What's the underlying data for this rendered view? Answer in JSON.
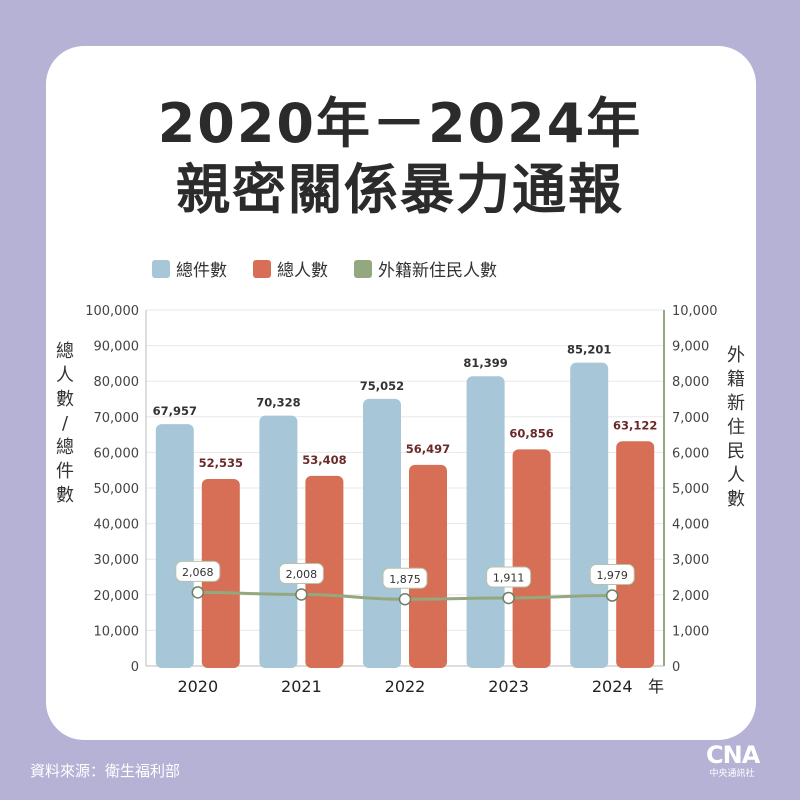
{
  "title": {
    "line1": "2020年－2024年",
    "line2": "親密關係暴力通報"
  },
  "legend": [
    {
      "label": "總件數",
      "color": "#a7c6d8"
    },
    {
      "label": "總人數",
      "color": "#d66f55"
    },
    {
      "label": "外籍新住民人數",
      "color": "#94a87f"
    }
  ],
  "left_axis_label": [
    "總",
    "人",
    "數",
    "/",
    "總",
    "件",
    "數"
  ],
  "right_axis_label": [
    "外",
    "籍",
    "新",
    "住",
    "民",
    "人",
    "數"
  ],
  "x_unit": "年",
  "source": "資料來源：衛生福利部",
  "logo": {
    "mark": "CNA",
    "sub": "中央通訊社"
  },
  "chart_data": {
    "type": "bar",
    "categories": [
      "2020",
      "2021",
      "2022",
      "2023",
      "2024"
    ],
    "series": [
      {
        "name": "總件數",
        "values": [
          67957,
          70328,
          75052,
          81399,
          85201
        ],
        "labels": [
          "67,957",
          "70,328",
          "75,052",
          "81,399",
          "85,201"
        ],
        "color": "#a7c6d8",
        "axis": "left"
      },
      {
        "name": "總人數",
        "values": [
          52535,
          53408,
          56497,
          60856,
          63122
        ],
        "labels": [
          "52,535",
          "53,408",
          "56,497",
          "60,856",
          "63,122"
        ],
        "color": "#d66f55",
        "axis": "left"
      },
      {
        "name": "外籍新住民人數",
        "values": [
          2068,
          2008,
          1875,
          1911,
          1979
        ],
        "labels": [
          "2,068",
          "2,008",
          "1,875",
          "1,911",
          "1,979"
        ],
        "color": "#94a87f",
        "axis": "right",
        "type": "line"
      }
    ],
    "left_ylim": [
      0,
      100000
    ],
    "right_ylim": [
      0,
      10000
    ],
    "left_ticks": [
      "0",
      "10,000",
      "20,000",
      "30,000",
      "40,000",
      "50,000",
      "60,000",
      "70,000",
      "80,000",
      "90,000",
      "100,000"
    ],
    "right_ticks": [
      "0",
      "1,000",
      "2,000",
      "3,000",
      "4,000",
      "5,000",
      "6,000",
      "7,000",
      "8,000",
      "9,000",
      "10,000"
    ],
    "grid": true
  }
}
